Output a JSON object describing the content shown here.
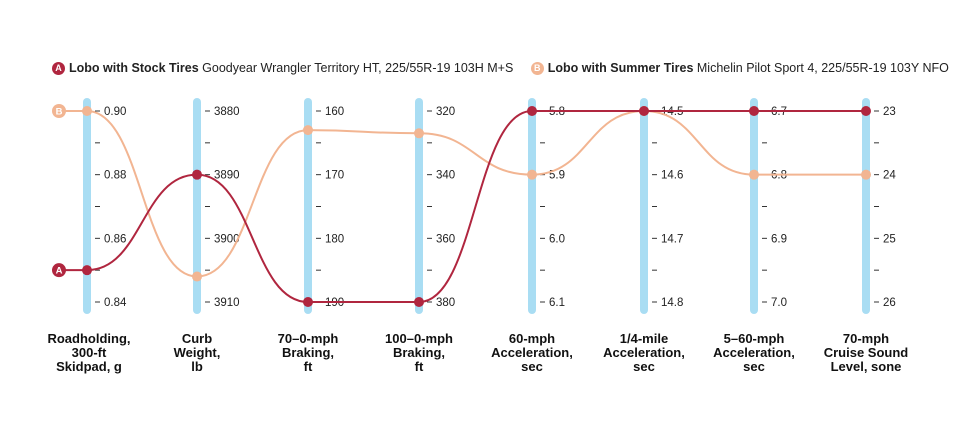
{
  "colors": {
    "stock": "#b0263f",
    "summer": "#f2b592",
    "axis": "#a9ddf3",
    "tick": "#333333"
  },
  "legend": {
    "stock": {
      "badge": "A",
      "name": "Lobo with Stock Tires",
      "desc": "Goodyear Wrangler Territory HT, 225/55R-19 103H M+S"
    },
    "summer": {
      "badge": "B",
      "name": "Lobo with Summer Tires",
      "desc": "Michelin Pilot Sport 4, 225/55R-19 103Y NFO"
    }
  },
  "axis_labels": [
    [
      "Roadholding,",
      "300-ft",
      "Skidpad, g"
    ],
    [
      "Curb",
      "Weight,",
      "lb"
    ],
    [
      "70–0-mph",
      "Braking,",
      "ft"
    ],
    [
      "100–0-mph",
      "Braking,",
      "ft"
    ],
    [
      "60-mph",
      "Acceleration,",
      "sec"
    ],
    [
      "1/4-mile",
      "Acceleration,",
      "sec"
    ],
    [
      "5–60-mph",
      "Acceleration,",
      "sec"
    ],
    [
      "70-mph",
      "Cruise Sound",
      "Level, sone"
    ]
  ],
  "chart_data": {
    "type": "parallel-coordinates",
    "title": "",
    "axes": [
      {
        "name": "Roadholding, 300-ft Skidpad, g",
        "ticks": [
          "0.90",
          "0.88",
          "0.86",
          "0.84"
        ],
        "range": [
          0.9,
          0.84
        ]
      },
      {
        "name": "Curb Weight, lb",
        "ticks": [
          "3880",
          "3890",
          "3900",
          "3910"
        ],
        "range": [
          3880,
          3910
        ]
      },
      {
        "name": "70–0-mph Braking, ft",
        "ticks": [
          "160",
          "170",
          "180",
          "190"
        ],
        "range": [
          160,
          190
        ]
      },
      {
        "name": "100–0-mph Braking, ft",
        "ticks": [
          "320",
          "340",
          "360",
          "380"
        ],
        "range": [
          320,
          380
        ]
      },
      {
        "name": "60-mph Acceleration, sec",
        "ticks": [
          "5.8",
          "5.9",
          "6.0",
          "6.1"
        ],
        "range": [
          5.8,
          6.1
        ]
      },
      {
        "name": "1/4-mile Acceleration, sec",
        "ticks": [
          "14.5",
          "14.6",
          "14.7",
          "14.8"
        ],
        "range": [
          14.5,
          14.8
        ]
      },
      {
        "name": "5–60-mph Acceleration, sec",
        "ticks": [
          "6.7",
          "6.8",
          "6.9",
          "7.0"
        ],
        "range": [
          6.7,
          7.0
        ]
      },
      {
        "name": "70-mph Cruise Sound Level, sone",
        "ticks": [
          "23",
          "24",
          "25",
          "26"
        ],
        "range": [
          23,
          26
        ]
      }
    ],
    "series": [
      {
        "name": "Lobo with Summer Tires",
        "badge": "B",
        "values": [
          0.9,
          3906,
          163,
          327,
          5.9,
          14.5,
          6.8,
          24
        ]
      },
      {
        "name": "Lobo with Stock Tires",
        "badge": "A",
        "values": [
          0.85,
          3890,
          190,
          380,
          5.8,
          14.5,
          6.7,
          23
        ]
      }
    ]
  }
}
